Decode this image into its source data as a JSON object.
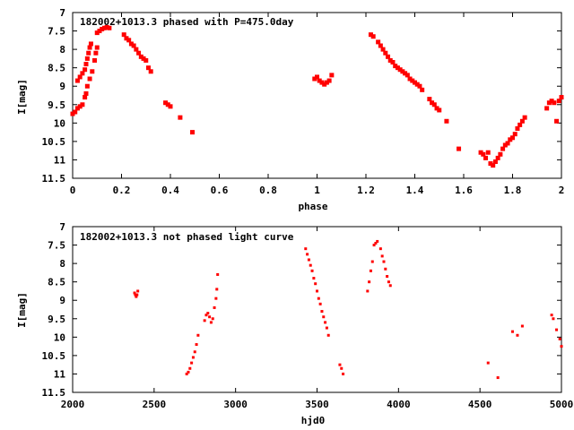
{
  "chart_data": [
    {
      "type": "scatter",
      "title": "182002+1013.3 phased with P=475.0day",
      "xlabel": "phase",
      "ylabel": "I[mag]",
      "xlim": [
        0,
        2
      ],
      "ylim": [
        11.5,
        7
      ],
      "y_inverted": true,
      "grid": false,
      "marker_color": "#ff0000",
      "x_ticks": [
        "0",
        "0.2",
        "0.4",
        "0.6",
        "0.8",
        "1",
        "1.2",
        "1.4",
        "1.6",
        "1.8",
        "2"
      ],
      "y_ticks": [
        "7",
        "7.5",
        "8",
        "8.5",
        "9",
        "9.5",
        "10",
        "10.5",
        "11",
        "11.5"
      ],
      "points": [
        [
          0.0,
          9.75
        ],
        [
          0.01,
          9.7
        ],
        [
          0.02,
          9.6
        ],
        [
          0.03,
          9.55
        ],
        [
          0.04,
          9.5
        ],
        [
          0.02,
          8.85
        ],
        [
          0.03,
          8.75
        ],
        [
          0.04,
          8.65
        ],
        [
          0.05,
          8.55
        ],
        [
          0.055,
          8.4
        ],
        [
          0.06,
          8.25
        ],
        [
          0.065,
          8.1
        ],
        [
          0.07,
          7.95
        ],
        [
          0.075,
          7.85
        ],
        [
          0.05,
          9.3
        ],
        [
          0.055,
          9.2
        ],
        [
          0.06,
          9.0
        ],
        [
          0.07,
          8.8
        ],
        [
          0.08,
          8.6
        ],
        [
          0.09,
          8.3
        ],
        [
          0.095,
          8.1
        ],
        [
          0.1,
          7.95
        ],
        [
          0.1,
          7.55
        ],
        [
          0.11,
          7.5
        ],
        [
          0.12,
          7.45
        ],
        [
          0.13,
          7.42
        ],
        [
          0.14,
          7.4
        ],
        [
          0.15,
          7.42
        ],
        [
          0.21,
          7.6
        ],
        [
          0.22,
          7.7
        ],
        [
          0.23,
          7.75
        ],
        [
          0.24,
          7.85
        ],
        [
          0.25,
          7.9
        ],
        [
          0.26,
          8.0
        ],
        [
          0.27,
          8.1
        ],
        [
          0.28,
          8.2
        ],
        [
          0.29,
          8.25
        ],
        [
          0.3,
          8.3
        ],
        [
          0.31,
          8.5
        ],
        [
          0.32,
          8.6
        ],
        [
          0.38,
          9.45
        ],
        [
          0.39,
          9.5
        ],
        [
          0.4,
          9.55
        ],
        [
          0.44,
          9.85
        ],
        [
          0.49,
          10.25
        ],
        [
          0.99,
          8.8
        ],
        [
          1.0,
          8.75
        ],
        [
          1.01,
          8.85
        ],
        [
          1.02,
          8.9
        ],
        [
          1.03,
          8.95
        ],
        [
          1.04,
          8.9
        ],
        [
          1.05,
          8.85
        ],
        [
          1.06,
          8.7
        ],
        [
          1.22,
          7.6
        ],
        [
          1.23,
          7.65
        ],
        [
          1.25,
          7.8
        ],
        [
          1.26,
          7.9
        ],
        [
          1.27,
          8.0
        ],
        [
          1.28,
          8.1
        ],
        [
          1.29,
          8.2
        ],
        [
          1.3,
          8.3
        ],
        [
          1.31,
          8.35
        ],
        [
          1.32,
          8.45
        ],
        [
          1.33,
          8.5
        ],
        [
          1.34,
          8.55
        ],
        [
          1.35,
          8.6
        ],
        [
          1.36,
          8.65
        ],
        [
          1.37,
          8.7
        ],
        [
          1.38,
          8.8
        ],
        [
          1.39,
          8.85
        ],
        [
          1.4,
          8.9
        ],
        [
          1.41,
          8.95
        ],
        [
          1.42,
          9.0
        ],
        [
          1.43,
          9.1
        ],
        [
          1.46,
          9.35
        ],
        [
          1.47,
          9.45
        ],
        [
          1.48,
          9.5
        ],
        [
          1.49,
          9.6
        ],
        [
          1.5,
          9.65
        ],
        [
          1.53,
          9.95
        ],
        [
          1.58,
          10.7
        ],
        [
          1.67,
          10.8
        ],
        [
          1.68,
          10.85
        ],
        [
          1.69,
          10.95
        ],
        [
          1.7,
          10.8
        ],
        [
          1.71,
          11.1
        ],
        [
          1.72,
          11.15
        ],
        [
          1.73,
          11.05
        ],
        [
          1.74,
          10.95
        ],
        [
          1.75,
          10.85
        ],
        [
          1.76,
          10.7
        ],
        [
          1.77,
          10.6
        ],
        [
          1.78,
          10.55
        ],
        [
          1.79,
          10.45
        ],
        [
          1.8,
          10.4
        ],
        [
          1.81,
          10.3
        ],
        [
          1.82,
          10.15
        ],
        [
          1.83,
          10.05
        ],
        [
          1.84,
          9.95
        ],
        [
          1.85,
          9.85
        ],
        [
          1.94,
          9.6
        ],
        [
          1.95,
          9.45
        ],
        [
          1.96,
          9.4
        ],
        [
          1.97,
          9.45
        ],
        [
          1.98,
          9.95
        ],
        [
          1.99,
          9.4
        ],
        [
          2.0,
          9.3
        ]
      ]
    },
    {
      "type": "scatter",
      "title": "182002+1013.3 not phased light curve",
      "xlabel": "hjd0",
      "ylabel": "I[mag]",
      "xlim": [
        2000,
        5000
      ],
      "ylim": [
        11.5,
        7
      ],
      "y_inverted": true,
      "grid": false,
      "marker_color": "#ff0000",
      "x_ticks": [
        "2000",
        "2500",
        "3000",
        "3500",
        "4000",
        "4500",
        "5000"
      ],
      "y_ticks": [
        "7",
        "7.5",
        "8",
        "8.5",
        "9",
        "9.5",
        "10",
        "10.5",
        "11",
        "11.5"
      ],
      "points": [
        [
          2380,
          8.8
        ],
        [
          2385,
          8.85
        ],
        [
          2390,
          8.9
        ],
        [
          2395,
          8.85
        ],
        [
          2400,
          8.75
        ],
        [
          2700,
          11.0
        ],
        [
          2710,
          10.95
        ],
        [
          2720,
          10.85
        ],
        [
          2730,
          10.7
        ],
        [
          2740,
          10.55
        ],
        [
          2750,
          10.4
        ],
        [
          2760,
          10.2
        ],
        [
          2770,
          9.95
        ],
        [
          2810,
          9.55
        ],
        [
          2820,
          9.4
        ],
        [
          2830,
          9.35
        ],
        [
          2840,
          9.45
        ],
        [
          2850,
          9.6
        ],
        [
          2860,
          9.5
        ],
        [
          2870,
          9.2
        ],
        [
          2880,
          8.95
        ],
        [
          2885,
          8.7
        ],
        [
          2890,
          8.3
        ],
        [
          3430,
          7.6
        ],
        [
          3440,
          7.75
        ],
        [
          3450,
          7.9
        ],
        [
          3460,
          8.05
        ],
        [
          3470,
          8.2
        ],
        [
          3480,
          8.4
        ],
        [
          3490,
          8.55
        ],
        [
          3500,
          8.75
        ],
        [
          3510,
          8.95
        ],
        [
          3520,
          9.1
        ],
        [
          3530,
          9.3
        ],
        [
          3540,
          9.45
        ],
        [
          3550,
          9.6
        ],
        [
          3560,
          9.75
        ],
        [
          3570,
          9.95
        ],
        [
          3640,
          10.75
        ],
        [
          3650,
          10.85
        ],
        [
          3660,
          11.0
        ],
        [
          3810,
          8.75
        ],
        [
          3820,
          8.5
        ],
        [
          3830,
          8.2
        ],
        [
          3840,
          7.95
        ],
        [
          3850,
          7.5
        ],
        [
          3860,
          7.45
        ],
        [
          3870,
          7.4
        ],
        [
          3890,
          7.6
        ],
        [
          3900,
          7.8
        ],
        [
          3910,
          7.95
        ],
        [
          3920,
          8.15
        ],
        [
          3930,
          8.35
        ],
        [
          3940,
          8.5
        ],
        [
          3950,
          8.6
        ],
        [
          4550,
          10.7
        ],
        [
          4610,
          11.1
        ],
        [
          4700,
          9.85
        ],
        [
          4730,
          9.95
        ],
        [
          4760,
          9.7
        ],
        [
          4940,
          9.4
        ],
        [
          4950,
          9.5
        ],
        [
          4970,
          9.8
        ],
        [
          4990,
          10.05
        ],
        [
          5000,
          10.25
        ]
      ]
    }
  ]
}
